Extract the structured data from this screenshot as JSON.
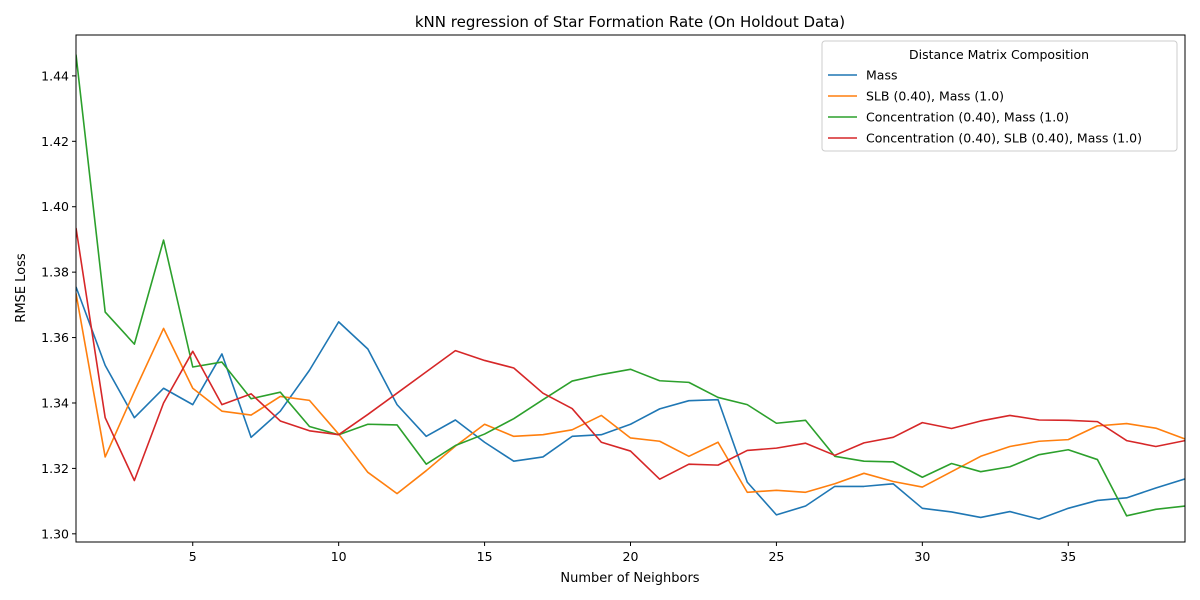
{
  "chart_data": {
    "type": "line",
    "title": "kNN regression of Star Formation Rate (On Holdout Data)",
    "xlabel": "Number of Neighbors",
    "ylabel": "RMSE Loss",
    "xlim": [
      1,
      39
    ],
    "ylim": [
      1.2975,
      1.4525
    ],
    "xticks": [
      5,
      10,
      15,
      20,
      25,
      30,
      35
    ],
    "yticks": [
      1.3,
      1.32,
      1.34,
      1.36,
      1.38,
      1.4,
      1.42,
      1.44
    ],
    "ytick_labels": [
      "1.30",
      "1.32",
      "1.34",
      "1.36",
      "1.38",
      "1.40",
      "1.42",
      "1.44"
    ],
    "grid": false,
    "legend": {
      "title": "Distance Matrix Composition",
      "position": "top-right"
    },
    "x": [
      1,
      2,
      3,
      4,
      5,
      6,
      7,
      8,
      9,
      10,
      11,
      12,
      13,
      14,
      15,
      16,
      17,
      18,
      19,
      20,
      21,
      22,
      23,
      24,
      25,
      26,
      27,
      28,
      29,
      30,
      31,
      32,
      33,
      34,
      35,
      36,
      37,
      38,
      39
    ],
    "series": [
      {
        "name": "Mass",
        "color": "#1f77b4",
        "values": [
          1.3755,
          1.3515,
          1.3355,
          1.3445,
          1.3395,
          1.355,
          1.3295,
          1.3375,
          1.35,
          1.3648,
          1.3565,
          1.3395,
          1.3298,
          1.3348,
          1.328,
          1.3222,
          1.3235,
          1.3298,
          1.3303,
          1.3335,
          1.3382,
          1.3407,
          1.341,
          1.3158,
          1.3058,
          1.3085,
          1.3145,
          1.3145,
          1.3153,
          1.3078,
          1.3067,
          1.305,
          1.3068,
          1.3045,
          1.3078,
          1.3102,
          1.311,
          1.314,
          1.3168
        ]
      },
      {
        "name": "SLB (0.40), Mass (1.0)",
        "color": "#ff7f0e",
        "values": [
          1.3735,
          1.3235,
          1.3435,
          1.3628,
          1.3445,
          1.3375,
          1.3363,
          1.342,
          1.3408,
          1.3305,
          1.3188,
          1.3123,
          1.3193,
          1.3268,
          1.3335,
          1.3298,
          1.3303,
          1.3318,
          1.3362,
          1.3293,
          1.3283,
          1.3237,
          1.328,
          1.3127,
          1.3133,
          1.3127,
          1.3153,
          1.3185,
          1.316,
          1.3143,
          1.319,
          1.3237,
          1.3267,
          1.3283,
          1.3288,
          1.333,
          1.3337,
          1.3323,
          1.329
        ]
      },
      {
        "name": "Concentration (0.40), Mass (1.0)",
        "color": "#2ca02c",
        "values": [
          1.4465,
          1.3678,
          1.358,
          1.3898,
          1.351,
          1.3525,
          1.3413,
          1.3433,
          1.3328,
          1.3303,
          1.3335,
          1.3333,
          1.3213,
          1.327,
          1.3305,
          1.3352,
          1.341,
          1.3467,
          1.3487,
          1.3503,
          1.3468,
          1.3463,
          1.3417,
          1.3395,
          1.3338,
          1.3347,
          1.3237,
          1.3222,
          1.322,
          1.3173,
          1.3215,
          1.319,
          1.3205,
          1.3242,
          1.3257,
          1.3227,
          1.3055,
          1.3075,
          1.3085
        ]
      },
      {
        "name": "Concentration (0.40), SLB (0.40), Mass (1.0)",
        "color": "#d62728",
        "values": [
          1.3935,
          1.3355,
          1.3163,
          1.34,
          1.3558,
          1.3395,
          1.3428,
          1.3345,
          1.3315,
          1.3303,
          1.3365,
          1.343,
          1.3495,
          1.356,
          1.353,
          1.3507,
          1.343,
          1.3383,
          1.328,
          1.3253,
          1.3167,
          1.3213,
          1.321,
          1.3255,
          1.3262,
          1.3277,
          1.324,
          1.3278,
          1.3295,
          1.334,
          1.3322,
          1.3345,
          1.3362,
          1.3348,
          1.3347,
          1.3343,
          1.3285,
          1.3267,
          1.3285
        ]
      }
    ]
  }
}
